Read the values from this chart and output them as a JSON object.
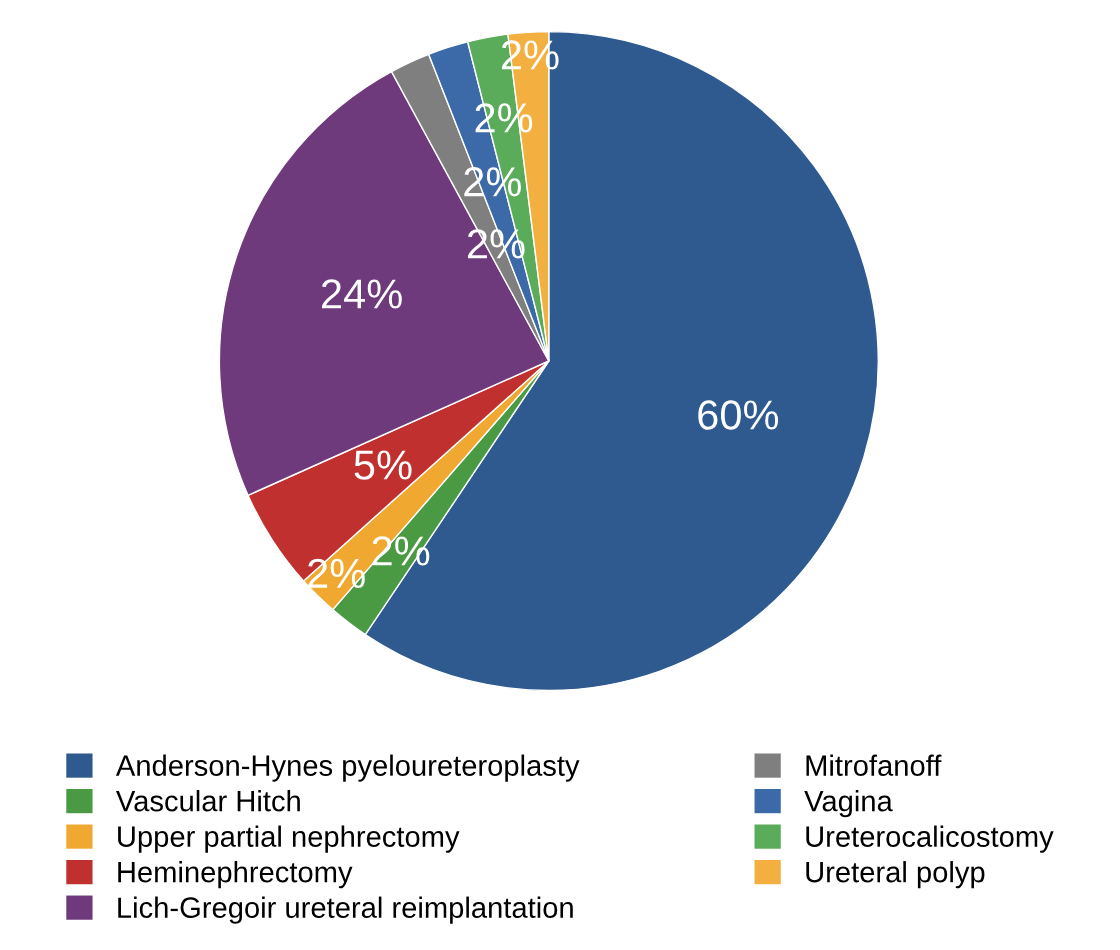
{
  "chart_data": {
    "type": "pie",
    "categories": [
      "Anderson-Hynes pyeloureteroplasty",
      "Vascular Hitch",
      "Upper partial nephrectomy",
      "Heminephrectomy",
      "Lich-Gregoir ureteral reimplantation",
      "Mitrofanoff",
      "Vagina",
      "Ureterocalicostomy",
      "Ureteral polyp"
    ],
    "values": [
      60,
      2,
      2,
      5,
      24,
      2,
      2,
      2,
      2
    ],
    "colors": [
      "#2f5a8f",
      "#4a9a44",
      "#f0a830",
      "#c0302e",
      "#6e3a7c",
      "#7f7f7f",
      "#3c6aa8",
      "#5aac5a",
      "#f3b040"
    ],
    "value_labels": [
      "60%",
      "2%",
      "2%",
      "5%",
      "24%",
      "2%",
      "2%",
      "2%",
      "2%"
    ],
    "legend": "bottom"
  }
}
